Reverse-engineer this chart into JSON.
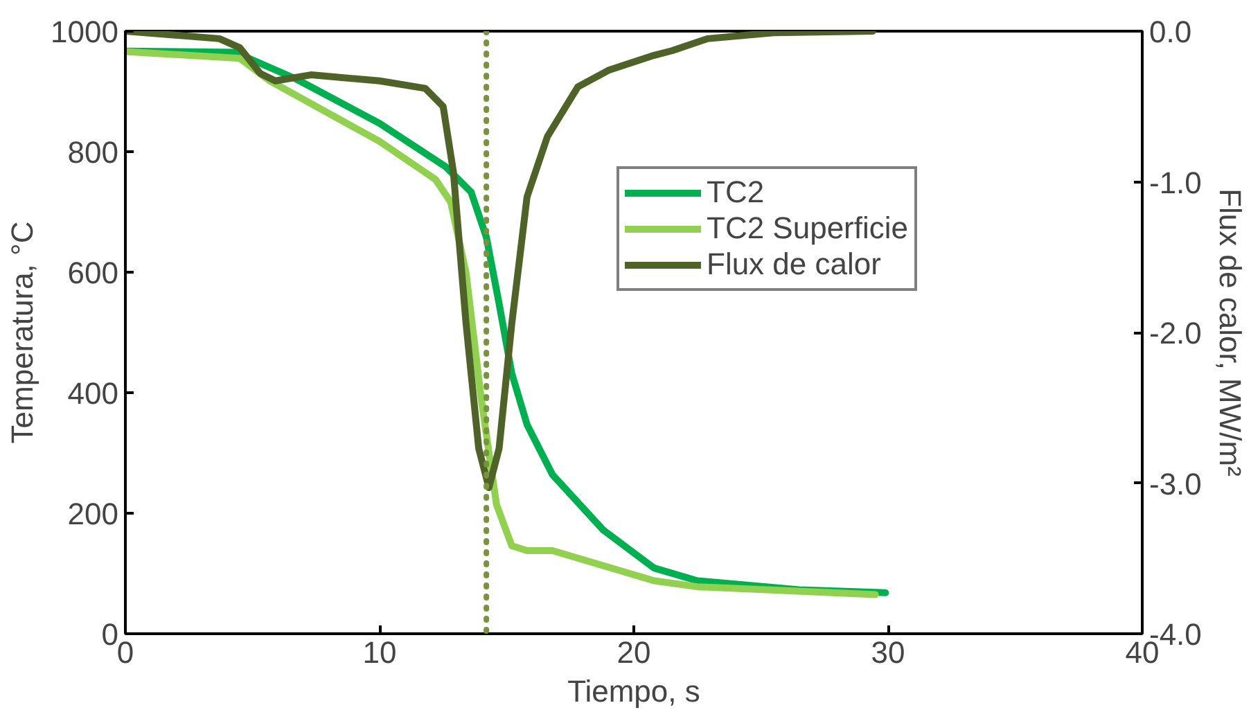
{
  "chart_data": {
    "type": "line",
    "xlabel": "Tiempo, s",
    "ylabel": "Temperatura, °C",
    "y2label": "Flux de calor, MW/m²",
    "xlim": [
      0,
      40
    ],
    "xticks": [
      0,
      10,
      20,
      30,
      40
    ],
    "ylim": [
      0,
      1000
    ],
    "yticks": [
      0,
      200,
      400,
      600,
      800,
      1000
    ],
    "y2lim": [
      -4,
      0
    ],
    "y2ticks": [
      {
        "value": -4,
        "label": "-4.0"
      },
      {
        "value": -3,
        "label": "-3.0"
      },
      {
        "value": -2,
        "label": "-2.0"
      },
      {
        "value": -1,
        "label": "-1.0"
      },
      {
        "value": 0,
        "label": "0.0"
      }
    ],
    "grid": false,
    "legend": "top right",
    "line_style": "solid",
    "marker": "none",
    "ref_lines": [
      {
        "axis": "x",
        "value": 14.2,
        "color": "#77933c",
        "line_style": "dotted"
      }
    ],
    "series": [
      {
        "name": "TC2",
        "color": "#00b050",
        "x": [
          0,
          4.3,
          6.7,
          10,
          12.6,
          13.6,
          14.2,
          14.7,
          15.2,
          15.8,
          16.8,
          18.8,
          20.8,
          22.5,
          26.5,
          29.9
        ],
        "values": [
          967,
          965,
          921,
          847,
          775,
          733,
          658,
          548,
          432,
          347,
          264,
          172,
          109,
          88,
          73,
          68
        ]
      },
      {
        "name": "TC2 Superficie",
        "color": "#92d050",
        "x": [
          0,
          4.5,
          5.7,
          10,
          12.2,
          12.8,
          13.4,
          14.0,
          14.6,
          15.2,
          15.8,
          16.8,
          18.8,
          20.8,
          22.5,
          29.5
        ],
        "values": [
          966,
          955,
          917,
          817,
          754,
          716,
          599,
          389,
          214,
          146,
          138,
          138,
          113,
          88,
          78,
          65
        ]
      },
      {
        "name": "Flux de calor",
        "color": "#4f6228",
        "axis": "y2",
        "x": [
          0,
          3.7,
          4.5,
          5.3,
          5.9,
          7.3,
          10,
          11.8,
          12.5,
          12.9,
          13.4,
          13.9,
          14.3,
          14.7,
          15.2,
          15.8,
          16.6,
          17.8,
          19.0,
          20.8,
          21.5,
          22.9,
          25.5,
          29.4
        ],
        "values": [
          0.0,
          -0.05,
          -0.11,
          -0.28,
          -0.33,
          -0.29,
          -0.33,
          -0.38,
          -0.5,
          -0.93,
          -1.94,
          -2.77,
          -3.03,
          -2.77,
          -1.94,
          -1.1,
          -0.7,
          -0.37,
          -0.26,
          -0.16,
          -0.13,
          -0.05,
          -0.01,
          0.0
        ]
      }
    ]
  }
}
